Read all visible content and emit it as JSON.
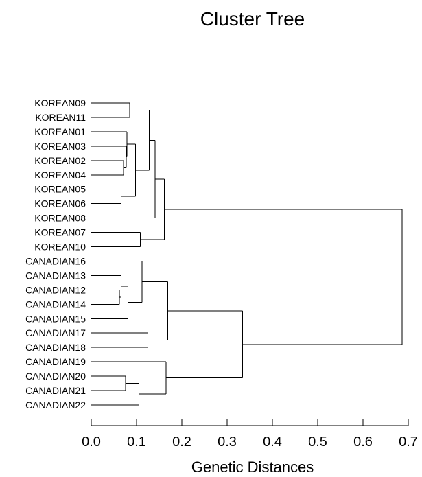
{
  "chart_data": {
    "type": "dendrogram",
    "title": "Cluster Tree",
    "xlabel": "Genetic Distances",
    "xlim": [
      0.0,
      0.7
    ],
    "x_ticks": [
      0.0,
      0.1,
      0.2,
      0.3,
      0.4,
      0.5,
      0.6,
      0.7
    ],
    "x_tick_labels": [
      "0.0",
      "0.1",
      "0.2",
      "0.3",
      "0.4",
      "0.5",
      "0.6",
      "0.7"
    ],
    "leaves": [
      "KOREAN09",
      "KOREAN11",
      "KOREAN01",
      "KOREAN03",
      "KOREAN02",
      "KOREAN04",
      "KOREAN05",
      "KOREAN06",
      "KOREAN08",
      "KOREAN07",
      "KOREAN10",
      "CANADIAN16",
      "CANADIAN13",
      "CANADIAN12",
      "CANADIAN14",
      "CANADIAN15",
      "CANADIAN17",
      "CANADIAN18",
      "CANADIAN19",
      "CANADIAN20",
      "CANADIAN21",
      "CANADIAN22"
    ],
    "merges": [
      {
        "left": "KOREAN09",
        "right": "KOREAN11",
        "height": 0.085
      },
      {
        "left": "KOREAN02",
        "right": "KOREAN04",
        "height": 0.071
      },
      {
        "left": "KOREAN03",
        "right": 1,
        "height": 0.077
      },
      {
        "left": "KOREAN01",
        "right": 2,
        "height": 0.079
      },
      {
        "left": "KOREAN05",
        "right": "KOREAN06",
        "height": 0.066
      },
      {
        "left": 3,
        "right": 4,
        "height": 0.098
      },
      {
        "left": 0,
        "right": 5,
        "height": 0.128
      },
      {
        "left": 6,
        "right": "KOREAN08",
        "height": 0.141
      },
      {
        "left": "KOREAN07",
        "right": "KOREAN10",
        "height": 0.108
      },
      {
        "left": 7,
        "right": 8,
        "height": 0.161
      },
      {
        "left": "CANADIAN12",
        "right": "CANADIAN14",
        "height": 0.062
      },
      {
        "left": "CANADIAN13",
        "right": 10,
        "height": 0.066
      },
      {
        "left": 11,
        "right": "CANADIAN15",
        "height": 0.081
      },
      {
        "left": "CANADIAN16",
        "right": 12,
        "height": 0.112
      },
      {
        "left": "CANADIAN17",
        "right": "CANADIAN18",
        "height": 0.125
      },
      {
        "left": 13,
        "right": 14,
        "height": 0.169
      },
      {
        "left": "CANADIAN20",
        "right": "CANADIAN21",
        "height": 0.076
      },
      {
        "left": 16,
        "right": "CANADIAN22",
        "height": 0.105
      },
      {
        "left": "CANADIAN19",
        "right": 17,
        "height": 0.165
      },
      {
        "left": 15,
        "right": 18,
        "height": 0.334
      },
      {
        "left": 9,
        "right": 19,
        "height": 0.686
      }
    ]
  }
}
